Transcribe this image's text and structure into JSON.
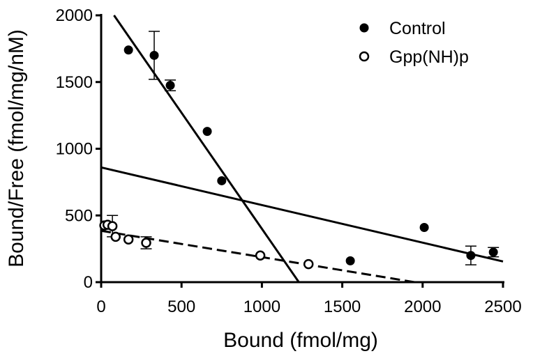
{
  "chart_data": {
    "type": "scatter",
    "xlabel": "Bound (fmol/mg)",
    "ylabel": "Bound/Free (fmol/mg/nM)",
    "xlim": [
      0,
      2500
    ],
    "ylim": [
      0,
      2000
    ],
    "x_ticks": [
      "0",
      "500",
      "1000",
      "1500",
      "2000",
      "2500"
    ],
    "y_ticks": [
      "0",
      "500",
      "1000",
      "1500",
      "2000"
    ],
    "grid": false,
    "legend_position": "top-right",
    "series": [
      {
        "name": "Control",
        "marker": "filled-circle",
        "points": [
          {
            "x": 170,
            "y": 1740
          },
          {
            "x": 330,
            "y": 1700,
            "err": 180
          },
          {
            "x": 430,
            "y": 1475,
            "err": 40
          },
          {
            "x": 660,
            "y": 1130
          },
          {
            "x": 750,
            "y": 760
          },
          {
            "x": 1550,
            "y": 160
          },
          {
            "x": 2010,
            "y": 410
          },
          {
            "x": 2300,
            "y": 200,
            "err": 70
          },
          {
            "x": 2440,
            "y": 225,
            "err": 35
          }
        ]
      },
      {
        "name": "Gpp(NH)p",
        "marker": "open-circle",
        "points": [
          {
            "x": 20,
            "y": 425
          },
          {
            "x": 40,
            "y": 430
          },
          {
            "x": 70,
            "y": 420,
            "err": 80
          },
          {
            "x": 90,
            "y": 340
          },
          {
            "x": 170,
            "y": 320
          },
          {
            "x": 280,
            "y": 295,
            "err": 45
          },
          {
            "x": 990,
            "y": 200
          },
          {
            "x": 1290,
            "y": 135
          }
        ]
      }
    ],
    "fit_lines": [
      {
        "style": "solid",
        "from": [
          80,
          2000
        ],
        "to": [
          1230,
          0
        ]
      },
      {
        "style": "solid",
        "from": [
          0,
          860
        ],
        "to": [
          2500,
          155
        ]
      },
      {
        "style": "dashed",
        "from": [
          0,
          385
        ],
        "to": [
          1950,
          0
        ]
      }
    ]
  }
}
